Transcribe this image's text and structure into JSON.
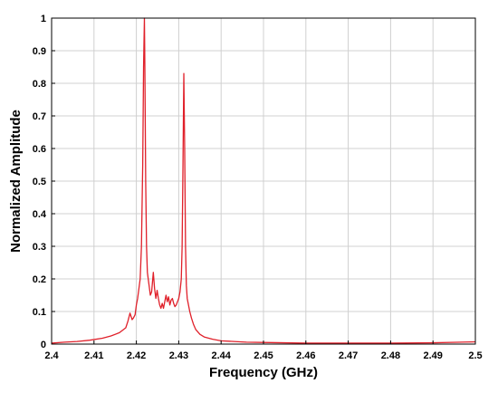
{
  "chart_data": {
    "type": "line",
    "title": "",
    "xlabel": "Frequency (GHz)",
    "ylabel": "Normalized Amplitude",
    "xlim": [
      2.4,
      2.5
    ],
    "ylim": [
      0,
      1
    ],
    "x_ticks": [
      "2.4",
      "2.41",
      "2.42",
      "2.43",
      "2.44",
      "2.45",
      "2.46",
      "2.47",
      "2.48",
      "2.49",
      "2.5"
    ],
    "y_ticks": [
      "0",
      "0.1",
      "0.2",
      "0.3",
      "0.4",
      "0.5",
      "0.6",
      "0.7",
      "0.8",
      "0.9",
      "1"
    ],
    "grid": true,
    "line_color": "#e0202a",
    "series": [
      {
        "x": [
          2.4,
          2.403,
          2.406,
          2.409,
          2.412,
          2.414,
          2.416,
          2.4175,
          2.418,
          2.4185,
          2.419,
          2.4193,
          2.4197,
          2.42,
          2.4203,
          2.4206,
          2.4209,
          2.4212,
          2.4215,
          2.4217,
          2.4219,
          2.422,
          2.4222,
          2.4224,
          2.4226,
          2.4228,
          2.423,
          2.4233,
          2.4236,
          2.424,
          2.4243,
          2.4246,
          2.4249,
          2.4252,
          2.4255,
          2.4258,
          2.4261,
          2.4264,
          2.4267,
          2.427,
          2.4273,
          2.4276,
          2.4279,
          2.4282,
          2.4285,
          2.4288,
          2.4291,
          2.4294,
          2.4297,
          2.43,
          2.4303,
          2.4306,
          2.4308,
          2.431,
          2.4312,
          2.4314,
          2.4316,
          2.4318,
          2.432,
          2.4323,
          2.4326,
          2.433,
          2.4335,
          2.434,
          2.435,
          2.436,
          2.438,
          2.44,
          2.443,
          2.446,
          2.45,
          2.455,
          2.46,
          2.47,
          2.48,
          2.49,
          2.5
        ],
        "y": [
          0.003,
          0.006,
          0.008,
          0.012,
          0.018,
          0.025,
          0.035,
          0.05,
          0.07,
          0.095,
          0.075,
          0.08,
          0.09,
          0.12,
          0.14,
          0.17,
          0.2,
          0.3,
          0.55,
          0.85,
          1.0,
          0.86,
          0.5,
          0.3,
          0.22,
          0.2,
          0.18,
          0.15,
          0.16,
          0.22,
          0.17,
          0.14,
          0.165,
          0.14,
          0.12,
          0.11,
          0.125,
          0.11,
          0.13,
          0.15,
          0.13,
          0.145,
          0.12,
          0.135,
          0.14,
          0.125,
          0.115,
          0.12,
          0.13,
          0.14,
          0.16,
          0.2,
          0.3,
          0.55,
          0.83,
          0.6,
          0.3,
          0.18,
          0.14,
          0.12,
          0.1,
          0.08,
          0.06,
          0.045,
          0.03,
          0.022,
          0.015,
          0.01,
          0.008,
          0.006,
          0.005,
          0.004,
          0.003,
          0.003,
          0.003,
          0.004,
          0.007
        ]
      }
    ]
  }
}
